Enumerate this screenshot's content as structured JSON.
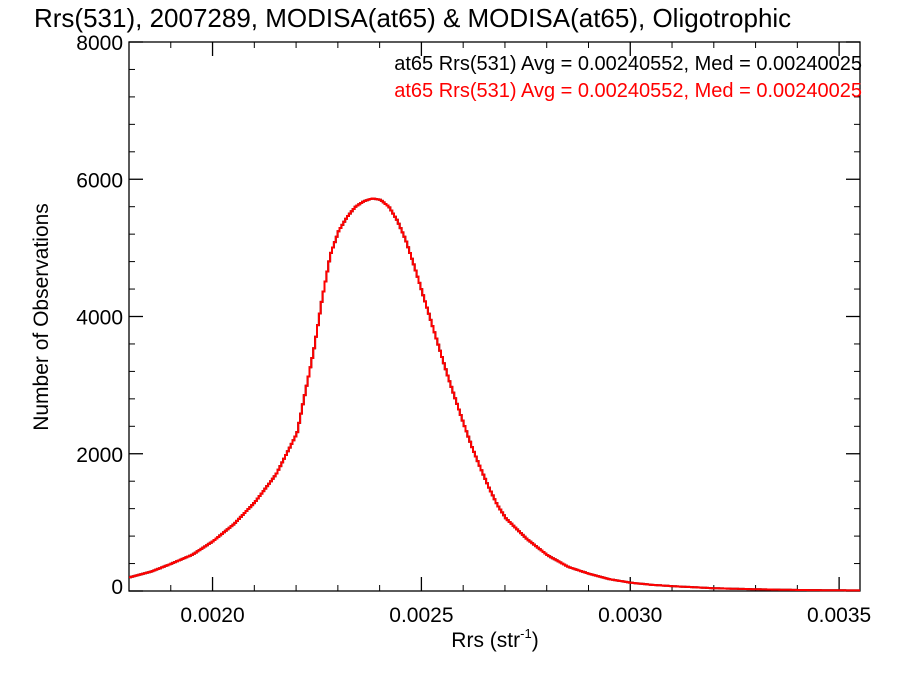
{
  "chart_data": {
    "type": "line",
    "title": "Rrs(531), 2007289, MODISA(at65) & MODISA(at65), Oligotrophic",
    "xlabel": "Rrs (str",
    "xlabel_sup": "-1",
    "xlabel_close": ")",
    "ylabel": "Number of Observations",
    "xlim": [
      0.0018,
      0.00355
    ],
    "ylim": [
      0,
      8000
    ],
    "x_ticks": [
      0.002,
      0.0025,
      0.003,
      0.0035
    ],
    "x_tick_labels": [
      "0.0020",
      "0.0025",
      "0.0030",
      "0.0035"
    ],
    "y_ticks": [
      0,
      2000,
      4000,
      6000,
      8000
    ],
    "y_tick_labels": [
      "0",
      "2000",
      "4000",
      "6000",
      "8000"
    ],
    "grid": false,
    "annotations": [
      {
        "text": "at65 Rrs(531) Avg = 0.00240552, Med = 0.00240025",
        "color": "#000000"
      },
      {
        "text": "at65 Rrs(531) Avg = 0.00240552, Med = 0.00240025",
        "color": "#ff0000"
      }
    ],
    "series": [
      {
        "color": "#ff0000",
        "step": true,
        "x": [
          0.0018,
          0.00185,
          0.0019,
          0.00195,
          0.002,
          0.00205,
          0.0021,
          0.00215,
          0.0022,
          0.00222,
          0.00224,
          0.00226,
          0.00228,
          0.0023,
          0.00232,
          0.00234,
          0.00236,
          0.00238,
          0.0024,
          0.00242,
          0.00244,
          0.00246,
          0.00248,
          0.0025,
          0.00252,
          0.00254,
          0.00256,
          0.00258,
          0.0026,
          0.00262,
          0.00264,
          0.00266,
          0.00268,
          0.0027,
          0.00275,
          0.0028,
          0.00285,
          0.0029,
          0.00295,
          0.003,
          0.00305,
          0.0031,
          0.00315,
          0.0032,
          0.0033,
          0.0034,
          0.0035,
          0.00355
        ],
        "y": [
          200,
          280,
          400,
          530,
          730,
          980,
          1300,
          1700,
          2300,
          2900,
          3500,
          4250,
          4900,
          5250,
          5450,
          5600,
          5680,
          5720,
          5700,
          5600,
          5400,
          5120,
          4750,
          4350,
          3950,
          3550,
          3150,
          2780,
          2420,
          2080,
          1780,
          1500,
          1250,
          1060,
          760,
          520,
          350,
          250,
          170,
          120,
          90,
          70,
          55,
          40,
          25,
          15,
          10,
          8
        ]
      }
    ]
  }
}
